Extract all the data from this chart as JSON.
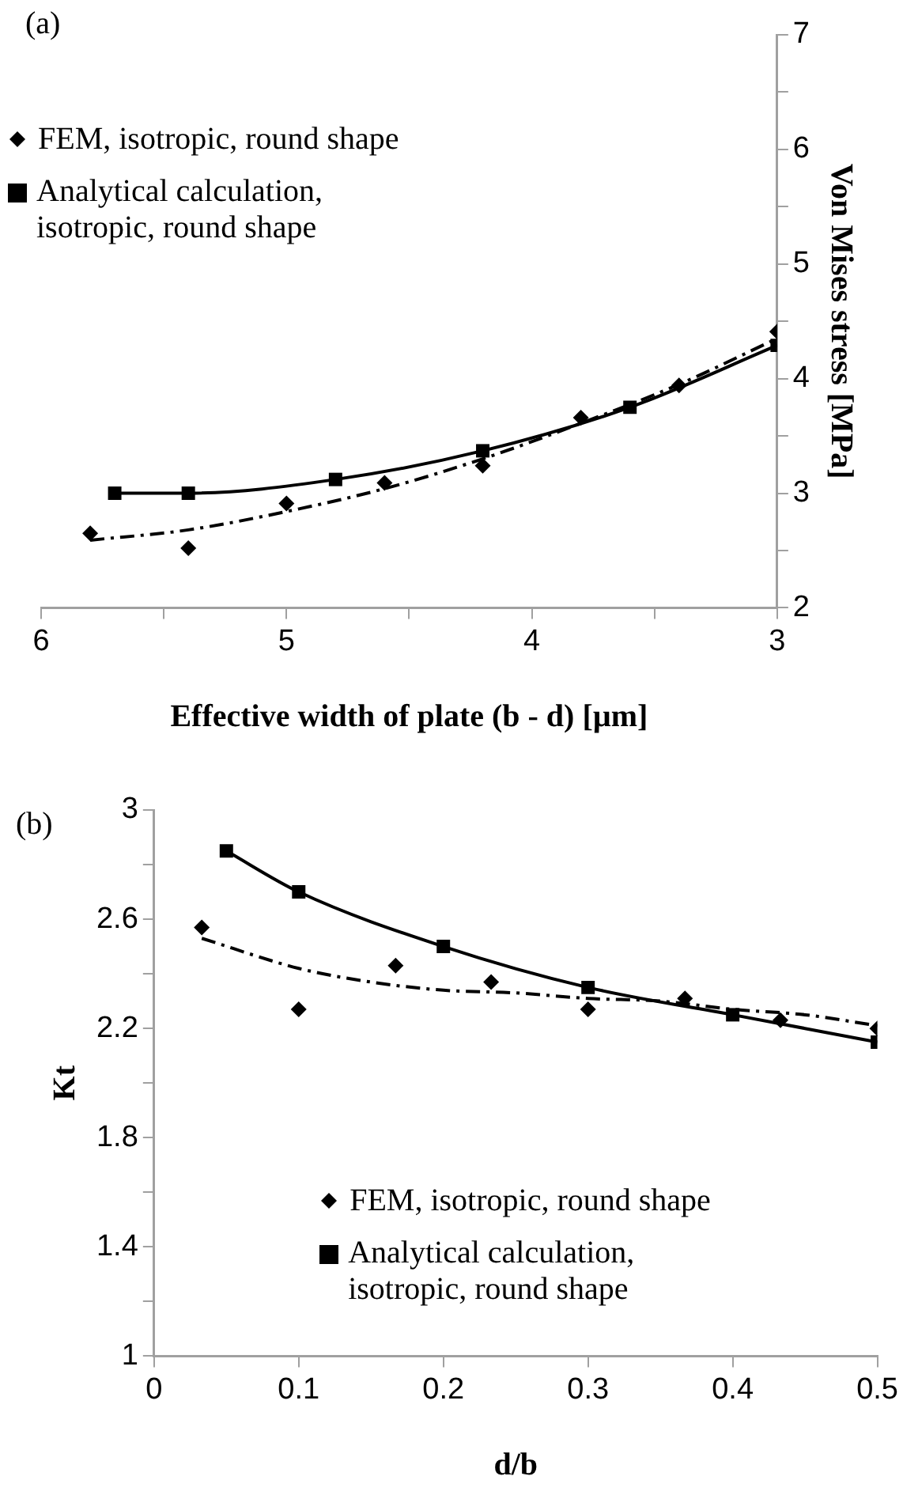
{
  "chart_data": [
    {
      "type": "scatter",
      "title": "(a)",
      "xlabel": "Effective width of plate (b - d) [µm]",
      "y2label": "Von Mises stress [MPa]",
      "xlim": [
        6,
        3
      ],
      "xticks": [
        6,
        {
          "value": 5.5,
          "label": null
        },
        5,
        {
          "value": 4.5,
          "label": null
        },
        4,
        {
          "value": 3.5,
          "label": null
        },
        3
      ],
      "y2lim": [
        2,
        7
      ],
      "y2ticks": [
        2,
        {
          "value": 2.5,
          "label": null
        },
        3,
        {
          "value": 3.5,
          "label": null
        },
        4,
        {
          "value": 4.5,
          "label": null
        },
        5,
        {
          "value": 5.5,
          "label": null
        },
        6,
        {
          "value": 6.5,
          "label": null
        },
        7
      ],
      "grid": false,
      "legend": "top left",
      "series": [
        {
          "name": "FEM, isotropic, round shape",
          "type": "scatter",
          "axis": "y2",
          "marker": "diamond",
          "color": "#000000",
          "x": [
            5.8,
            5.4,
            5.0,
            4.6,
            4.2,
            3.8,
            3.4,
            3.0
          ],
          "values": [
            2.65,
            2.52,
            2.91,
            3.09,
            3.24,
            3.66,
            3.94,
            4.41
          ]
        },
        {
          "name": "Analytical calculation, isotropic, round shape",
          "type": "line",
          "axis": "y2",
          "marker": "square",
          "line_style": "solid",
          "color": "#000000",
          "x": [
            5.7,
            5.4,
            4.8,
            4.2,
            3.6,
            3.0
          ],
          "values": [
            3.0,
            3.0,
            3.12,
            3.37,
            3.75,
            4.29
          ]
        },
        {
          "type": "line",
          "axis": "y2",
          "marker": "none",
          "line_style": "dashed",
          "color": "#000000",
          "x": [
            5.8,
            5.4,
            5.0,
            4.6,
            4.2,
            3.8,
            3.4,
            3.0
          ],
          "values": [
            2.59,
            2.68,
            2.84,
            3.04,
            3.3,
            3.61,
            3.95,
            4.35
          ]
        }
      ]
    },
    {
      "type": "scatter",
      "title": "(b)",
      "xlabel": "d/b",
      "ylabel": "Kt",
      "xlim": [
        0,
        0.5
      ],
      "xticks": [
        0,
        0.1,
        0.2,
        0.3,
        0.4,
        0.5
      ],
      "ylim": [
        1,
        3
      ],
      "yticks": [
        1,
        {
          "value": 1.2,
          "label": null
        },
        1.4,
        {
          "value": 1.6,
          "label": null
        },
        1.8,
        {
          "value": 2.0,
          "label": null
        },
        2.2,
        {
          "value": 2.4,
          "label": null
        },
        2.6,
        {
          "value": 2.8,
          "label": null
        },
        3
      ],
      "grid": false,
      "legend": "bottom",
      "series": [
        {
          "name": "FEM, isotropic, round shape",
          "type": "scatter",
          "marker": "diamond",
          "color": "#000000",
          "x": [
            0.033,
            0.1,
            0.167,
            0.233,
            0.3,
            0.367,
            0.433,
            0.5
          ],
          "values": [
            2.57,
            2.27,
            2.43,
            2.37,
            2.27,
            2.31,
            2.23,
            2.2
          ]
        },
        {
          "name": "Analytical calculation, isotropic, round shape",
          "type": "line",
          "marker": "square",
          "line_style": "solid",
          "color": "#000000",
          "x": [
            0.05,
            0.1,
            0.2,
            0.3,
            0.4,
            0.5
          ],
          "values": [
            2.85,
            2.7,
            2.5,
            2.35,
            2.25,
            2.15
          ]
        },
        {
          "type": "line",
          "marker": "none",
          "line_style": "dashed",
          "color": "#000000",
          "x": [
            0.033,
            0.1,
            0.15,
            0.2,
            0.25,
            0.3,
            0.35,
            0.4,
            0.45,
            0.5
          ],
          "values": [
            2.53,
            2.42,
            2.37,
            2.34,
            2.33,
            2.31,
            2.3,
            2.27,
            2.25,
            2.21
          ]
        }
      ]
    }
  ]
}
